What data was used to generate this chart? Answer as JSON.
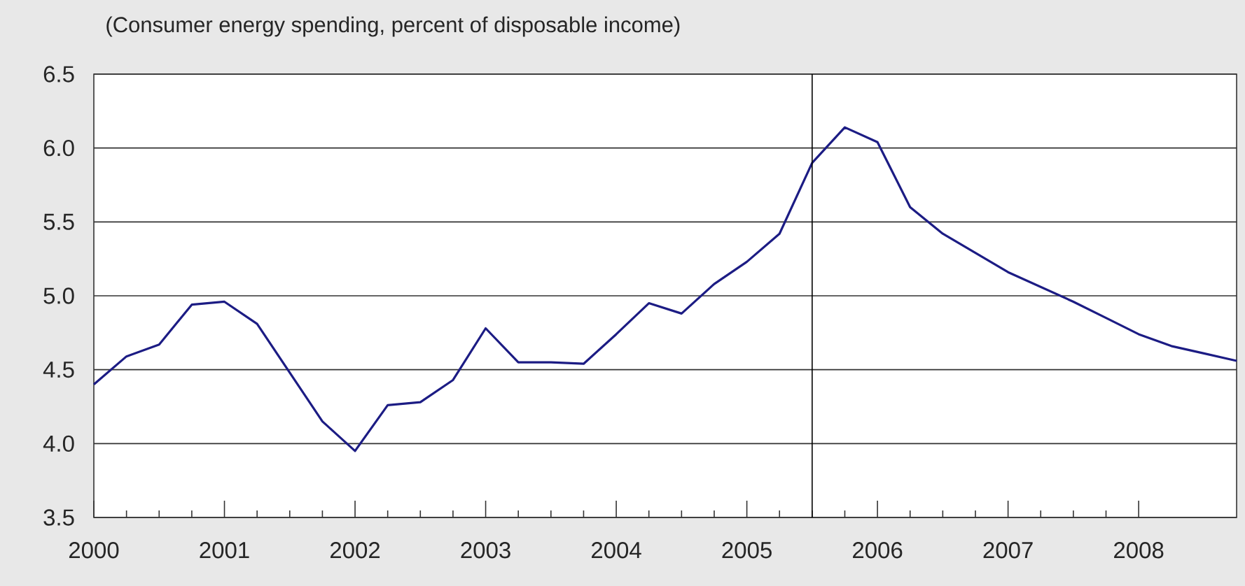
{
  "chart_data": {
    "type": "line",
    "title": "(Consumer energy spending, percent of disposable income)",
    "x": [
      2000.0,
      2000.25,
      2000.5,
      2000.75,
      2001.0,
      2001.25,
      2001.5,
      2001.75,
      2002.0,
      2002.25,
      2002.5,
      2002.75,
      2003.0,
      2003.25,
      2003.5,
      2003.75,
      2004.0,
      2004.25,
      2004.5,
      2004.75,
      2005.0,
      2005.25,
      2005.5,
      2005.75,
      2006.0,
      2006.25,
      2006.5,
      2006.75,
      2007.0,
      2007.25,
      2007.5,
      2007.75,
      2008.0,
      2008.25,
      2008.5,
      2008.75
    ],
    "series": [
      {
        "color": "#1c1c84",
        "values": [
          4.4,
          4.59,
          4.67,
          4.94,
          4.96,
          4.81,
          4.48,
          4.15,
          3.95,
          4.26,
          4.28,
          4.43,
          4.78,
          4.55,
          4.55,
          4.54,
          4.74,
          4.95,
          4.88,
          5.08,
          5.23,
          5.42,
          5.9,
          6.14,
          6.04,
          5.6,
          5.42,
          5.29,
          5.16,
          5.06,
          4.96,
          4.85,
          4.74,
          4.66,
          4.61,
          4.56
        ]
      }
    ],
    "xlim": [
      2000,
      2008.75
    ],
    "ylim": [
      3.5,
      6.5
    ],
    "xticks": [
      2000,
      2001,
      2002,
      2003,
      2004,
      2005,
      2006,
      2007,
      2008
    ],
    "yticks": [
      {
        "value": 3.5,
        "label": "3.5"
      },
      {
        "value": 4,
        "label": "4.0"
      },
      {
        "value": 4.5,
        "label": "4.5"
      },
      {
        "value": 5,
        "label": "5.0"
      },
      {
        "value": 5.5,
        "label": "5.5"
      },
      {
        "value": 6,
        "label": "6.0"
      },
      {
        "value": 6.5,
        "label": "6.5"
      }
    ],
    "grid": "y",
    "marker": "none",
    "line_style": "solid",
    "ref_lines": [
      {
        "axis": "x",
        "value": 2005.5,
        "color": "#000000"
      }
    ]
  }
}
